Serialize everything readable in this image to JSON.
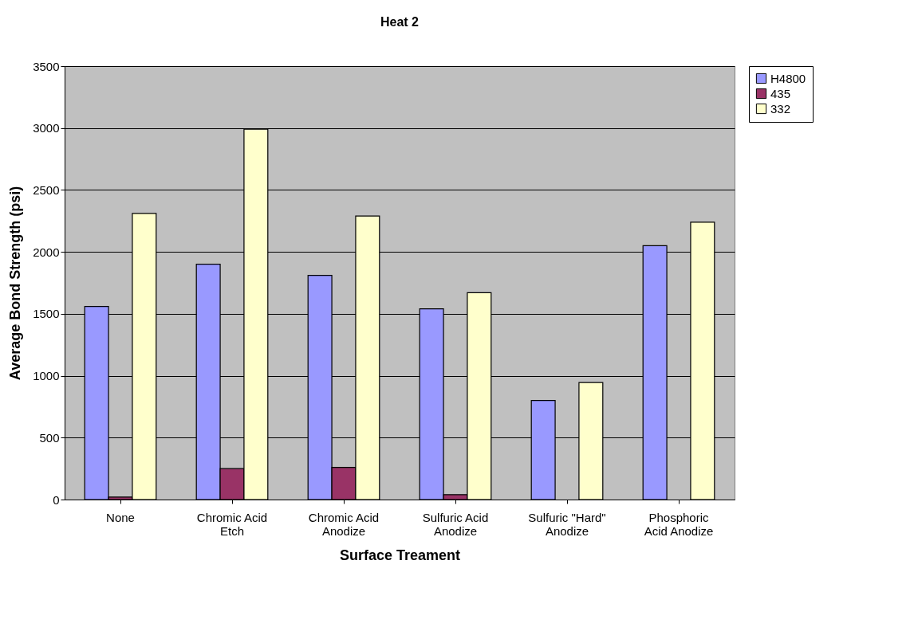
{
  "chart_data": {
    "type": "bar",
    "title": "Heat 2",
    "xlabel": "Surface Treament",
    "ylabel": "Average Bond Strength (psi)",
    "categories": [
      "None",
      "Chromic Acid\nEtch",
      "Chromic Acid\nAnodize",
      "Sulfuric Acid\nAnodize",
      "Sulfuric \"Hard\"\nAnodize",
      "Phosphoric\nAcid Anodize"
    ],
    "series": [
      {
        "name": "H4800",
        "color": "#9999ff",
        "values": [
          1560,
          1900,
          1810,
          1540,
          800,
          2050
        ]
      },
      {
        "name": "435",
        "color": "#993366",
        "values": [
          20,
          250,
          260,
          40,
          null,
          null
        ]
      },
      {
        "name": "332",
        "color": "#ffffcc",
        "values": [
          2310,
          2990,
          2290,
          1670,
          945,
          2240
        ]
      }
    ],
    "ylim": [
      0,
      3500
    ],
    "yticks": [
      0,
      500,
      1000,
      1500,
      2000,
      2500,
      3000,
      3500
    ],
    "grid": "y",
    "legend": "right"
  }
}
